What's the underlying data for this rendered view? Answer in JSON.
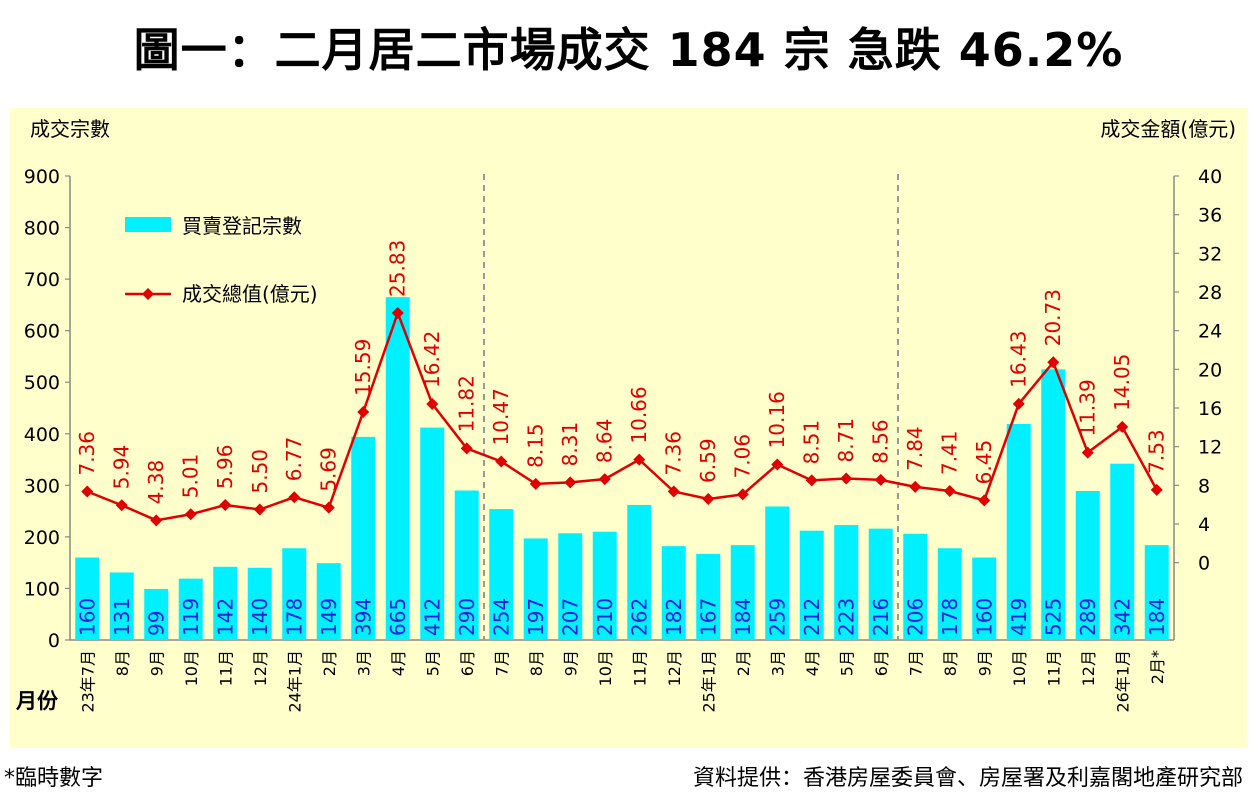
{
  "title": "圖一：二月居二市場成交 184 宗  急跌 46.2%",
  "footnote": "*臨時數字",
  "source": "資料提供：香港房屋委員會、房屋署及利嘉閣地產研究部",
  "colors": {
    "bar": "#00f0ff",
    "line": "#e00000",
    "plot_bg": "#ffffcc",
    "bar_label": "#2222dd",
    "divider": "#999999"
  },
  "chart_data": {
    "type": "bar",
    "title": "圖一：二月居二市場成交 184 宗  急跌 46.2%",
    "ylabel_left": "成交宗數",
    "ylabel_right": "成交金額(億元)",
    "xlabel": "月份",
    "ylim_left": [
      0,
      900
    ],
    "yticks_left": [
      0,
      100,
      200,
      300,
      400,
      500,
      600,
      700,
      800,
      900
    ],
    "ylim_right": [
      -8,
      40
    ],
    "yticks_right": [
      0,
      4,
      8,
      12,
      16,
      20,
      24,
      28,
      32,
      36,
      40
    ],
    "legend": {
      "bar": "買賣登記宗數",
      "line": "成交總值(億元)",
      "position": "top-left"
    },
    "categories": [
      "23年7月",
      "8月",
      "9月",
      "10月",
      "11月",
      "12月",
      "24年1月",
      "2月",
      "3月",
      "4月",
      "5月",
      "6月",
      "7月",
      "8月",
      "9月",
      "10月",
      "11月",
      "12月",
      "25年1月",
      "2月",
      "3月",
      "4月",
      "5月",
      "6月",
      "7月",
      "8月",
      "9月",
      "10月",
      "11月",
      "12月",
      "26年1月",
      "2月*"
    ],
    "series": [
      {
        "name": "買賣登記宗數",
        "type": "bar",
        "values": [
          160,
          131,
          99,
          119,
          142,
          140,
          178,
          149,
          394,
          665,
          412,
          290,
          254,
          197,
          207,
          210,
          262,
          182,
          167,
          184,
          259,
          212,
          223,
          216,
          206,
          178,
          160,
          419,
          525,
          289,
          342,
          184
        ]
      },
      {
        "name": "成交總值(億元)",
        "type": "line",
        "axis": "right",
        "values": [
          7.36,
          5.94,
          4.38,
          5.01,
          5.96,
          5.5,
          6.77,
          5.69,
          15.59,
          25.83,
          16.42,
          11.82,
          10.47,
          8.15,
          8.31,
          8.64,
          10.66,
          7.36,
          6.59,
          7.06,
          10.16,
          8.51,
          8.71,
          8.56,
          7.84,
          7.41,
          6.45,
          16.43,
          20.73,
          11.39,
          14.05,
          7.53
        ]
      }
    ],
    "value_labels": {
      "bars": [
        "160",
        "131",
        "99",
        "119",
        "142",
        "140",
        "178",
        "149",
        "394",
        "665",
        "412",
        "290",
        "254",
        "197",
        "207",
        "210",
        "262",
        "182",
        "167",
        "184",
        "259",
        "212",
        "223",
        "216",
        "206",
        "178",
        "160",
        "419",
        "525",
        "289",
        "342",
        "184"
      ],
      "line": [
        "7.36",
        "5.94",
        "4.38",
        "5.01",
        "5.96",
        "5.50",
        "6.77",
        "5.69",
        "15.59",
        "25.83",
        "16.42",
        "11.82",
        "10.47",
        "8.15",
        "8.31",
        "8.64",
        "10.66",
        "7.36",
        "6.59",
        "7.06",
        "10.16",
        "8.51",
        "8.71",
        "8.56",
        "7.84",
        "7.41",
        "6.45",
        "16.43",
        "20.73",
        "11.39",
        "14.05",
        "7.53"
      ]
    },
    "dividers_after_index": [
      11,
      23
    ]
  }
}
